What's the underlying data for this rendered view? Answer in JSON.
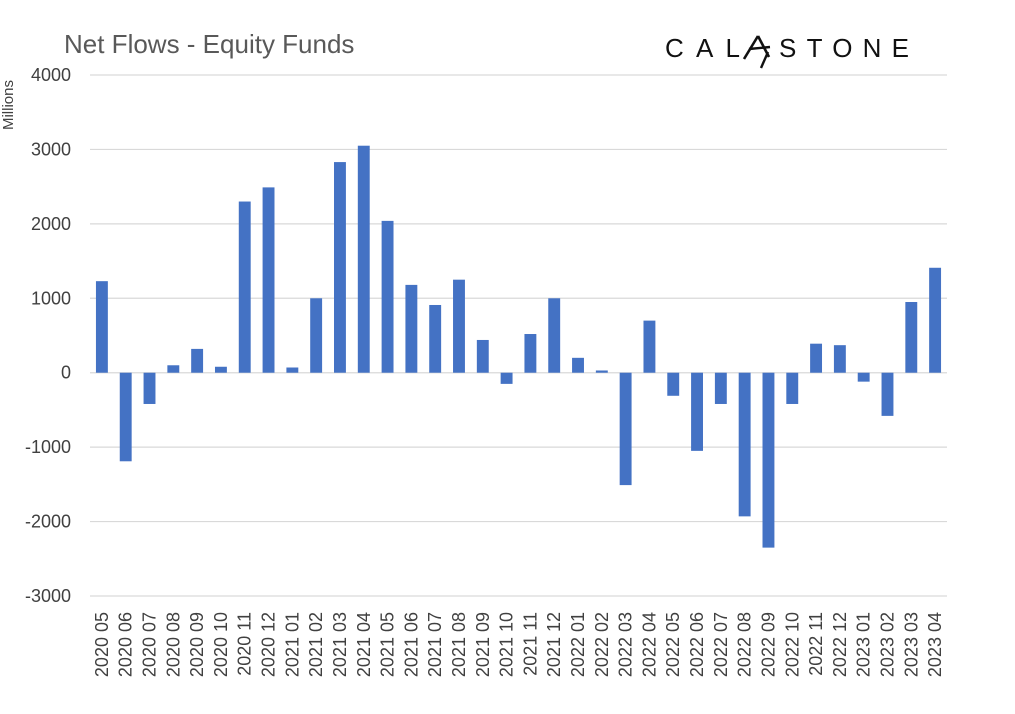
{
  "chart_data": {
    "type": "bar",
    "title": "Net Flows - Equity Funds",
    "ylabel": "Millions",
    "xlabel": "",
    "ylim": [
      -3000,
      4000
    ],
    "yticks": [
      4000,
      3000,
      2000,
      1000,
      0,
      -1000,
      -2000,
      -3000
    ],
    "grid": true,
    "legend": "none",
    "bar_color": "#4472C4",
    "categories": [
      "2020 05",
      "2020 06",
      "2020 07",
      "2020 08",
      "2020 09",
      "2020 10",
      "2020 11",
      "2020 12",
      "2021 01",
      "2021 02",
      "2021 03",
      "2021 04",
      "2021 05",
      "2021 06",
      "2021 07",
      "2021 08",
      "2021 09",
      "2021 10",
      "2021 11",
      "2021 12",
      "2022 01",
      "2022 02",
      "2022 03",
      "2022 04",
      "2022 05",
      "2022 06",
      "2022 07",
      "2022 08",
      "2022 09",
      "2022 10",
      "2022 11",
      "2022 12",
      "2023 01",
      "2023 02",
      "2023 03",
      "2023 04"
    ],
    "values": [
      1230,
      -1190,
      -420,
      100,
      320,
      80,
      2300,
      2490,
      70,
      1000,
      2830,
      3050,
      2040,
      1180,
      910,
      1250,
      440,
      -150,
      520,
      1000,
      200,
      30,
      -1510,
      700,
      -310,
      -1050,
      -420,
      -1930,
      -2350,
      -420,
      390,
      370,
      -120,
      -580,
      950,
      1410
    ]
  },
  "brand": {
    "logo_left": "CAL",
    "logo_right": "STONE"
  }
}
